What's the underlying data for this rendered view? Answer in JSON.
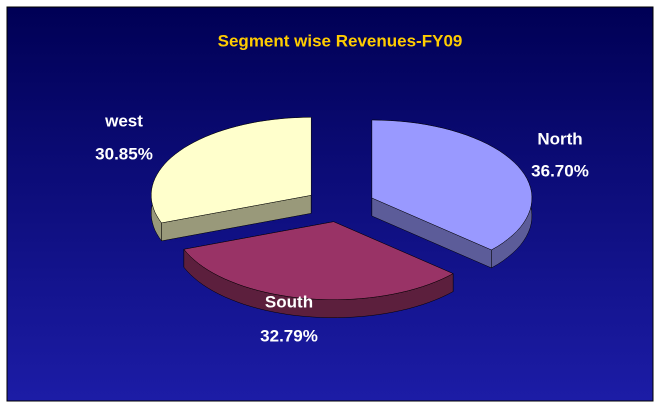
{
  "chart_data": {
    "type": "pie",
    "title": "Segment wise Revenues-FY09",
    "categories": [
      "North",
      "South",
      "west"
    ],
    "values": [
      36.7,
      32.79,
      30.85
    ],
    "value_labels": [
      "36.70%",
      "32.79%",
      "30.85%"
    ],
    "colors": [
      "#9999ff",
      "#993366",
      "#ffffcc"
    ]
  }
}
